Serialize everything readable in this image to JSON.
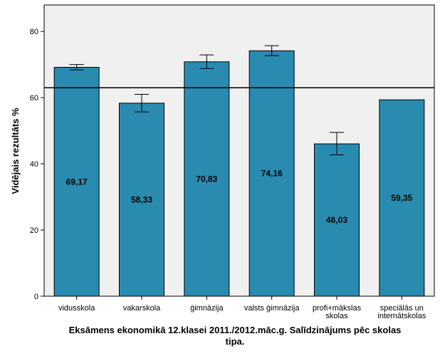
{
  "chart_data": {
    "type": "bar",
    "categories": [
      [
        "vidusskola"
      ],
      [
        "vakarskola"
      ],
      [
        "ģimnāzija"
      ],
      [
        "valsts ģimnāzija"
      ],
      [
        "profi+mākslas",
        "skolas"
      ],
      [
        "speciālās un",
        "internātskolas"
      ]
    ],
    "values": [
      69.17,
      58.33,
      70.83,
      74.16,
      46.03,
      59.35
    ],
    "value_labels": [
      "69,17",
      "58,33",
      "70,83",
      "74,16",
      "46,03",
      "59,35"
    ],
    "error_bars": [
      [
        68.4,
        70.0
      ],
      [
        55.7,
        61.0
      ],
      [
        68.8,
        72.9
      ],
      [
        72.7,
        75.7
      ],
      [
        42.7,
        49.5
      ],
      null
    ],
    "reference_line": 63.0,
    "ylabel": "Vidējais rezultāts %",
    "xlabel_lines": [
      "Eksāmens ekonomikā 12.klasei 2011./2012.māc.g. Salīdzinājums pēc skolas",
      "tipa."
    ],
    "ylim": [
      0,
      88
    ],
    "yticks": [
      0,
      20,
      40,
      60,
      80
    ],
    "grid": false,
    "bar_color": "#2A8BB0",
    "plot_background": "#F0F0F0"
  }
}
